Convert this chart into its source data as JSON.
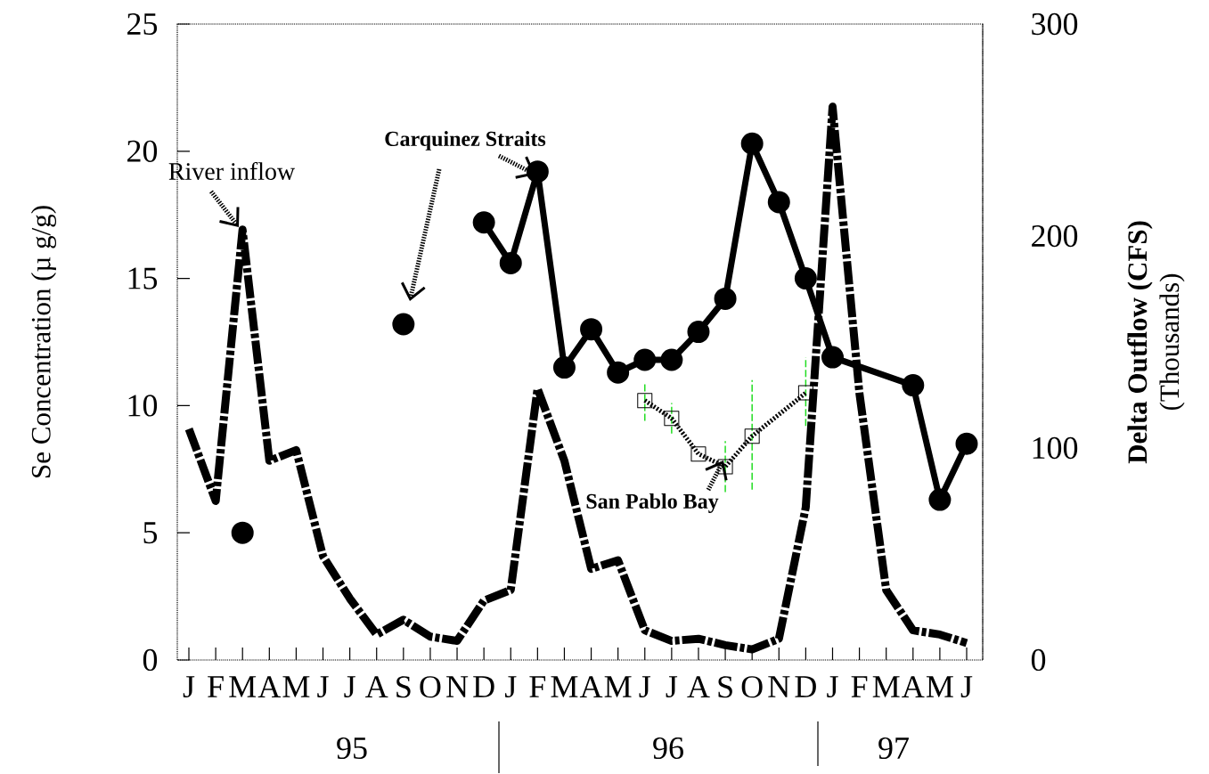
{
  "chart_data": {
    "type": "line",
    "categories": [
      "J",
      "F",
      "M",
      "A",
      "M",
      "J",
      "J",
      "A",
      "S",
      "O",
      "N",
      "D",
      "J",
      "F",
      "M",
      "A",
      "M",
      "J",
      "J",
      "A",
      "S",
      "O",
      "N",
      "D",
      "J",
      "F",
      "M",
      "A",
      "M",
      "J"
    ],
    "ylabel": "Se Concentration (µ g/g)",
    "y2label": "**Delta Outflow (CFS)** (Thousands)",
    "ylim": [
      0,
      25
    ],
    "yticks": [
      0,
      5,
      10,
      15,
      20,
      25
    ],
    "y2lim": [
      0,
      300
    ],
    "y2ticks": [
      0,
      100,
      200,
      300
    ],
    "series": [
      {
        "type": "line",
        "axis": "y2",
        "color": "#000000",
        "line_style": "dashed",
        "marker": "none",
        "values": [
          109,
          75,
          203,
          94,
          99,
          49,
          29,
          12,
          19,
          11,
          9,
          28,
          33,
          128,
          94,
          43,
          47,
          14,
          9,
          10,
          7,
          5,
          10,
          72,
          261,
          126,
          33,
          14,
          12,
          8
        ]
      },
      {
        "type": "scatter",
        "color": "#000000",
        "marker": "circle",
        "values": [
          null,
          null,
          5.0,
          null,
          null,
          null,
          null,
          null,
          13.2,
          null,
          null,
          null,
          null,
          null,
          null,
          null,
          null,
          null,
          null,
          null,
          null,
          null,
          null,
          null,
          null,
          null,
          null,
          null,
          null,
          null
        ]
      },
      {
        "type": "line",
        "color": "#000000",
        "line_style": "solid",
        "marker": "circle",
        "values": [
          null,
          null,
          null,
          null,
          null,
          null,
          null,
          null,
          null,
          null,
          null,
          17.2,
          15.6,
          19.2,
          11.5,
          13.0,
          11.3,
          11.8,
          11.8,
          12.9,
          14.2,
          20.3,
          18.0,
          15.0,
          11.9,
          null,
          null,
          10.8,
          6.3,
          8.5
        ]
      },
      {
        "type": "line",
        "color": "#000000",
        "line_style": "dotted",
        "marker": "square",
        "values": [
          null,
          null,
          null,
          null,
          null,
          null,
          null,
          null,
          null,
          null,
          null,
          null,
          null,
          null,
          null,
          null,
          null,
          10.2,
          9.5,
          8.1,
          7.6,
          8.8,
          null,
          10.5,
          null,
          null,
          null,
          null,
          null,
          null
        ],
        "errors": [
          null,
          null,
          null,
          null,
          null,
          null,
          null,
          null,
          null,
          null,
          null,
          null,
          null,
          null,
          null,
          null,
          null,
          [
            9.4,
            10.9
          ],
          [
            8.9,
            10.1
          ],
          null,
          [
            6.6,
            8.6
          ],
          [
            6.7,
            11.0
          ],
          null,
          [
            9.2,
            11.9
          ],
          null,
          null,
          null,
          null,
          null,
          null
        ]
      }
    ],
    "annotations": [
      "River inflow",
      "Carquinez Straits",
      "San Pablo Bay",
      "95",
      "96",
      "97"
    ]
  }
}
